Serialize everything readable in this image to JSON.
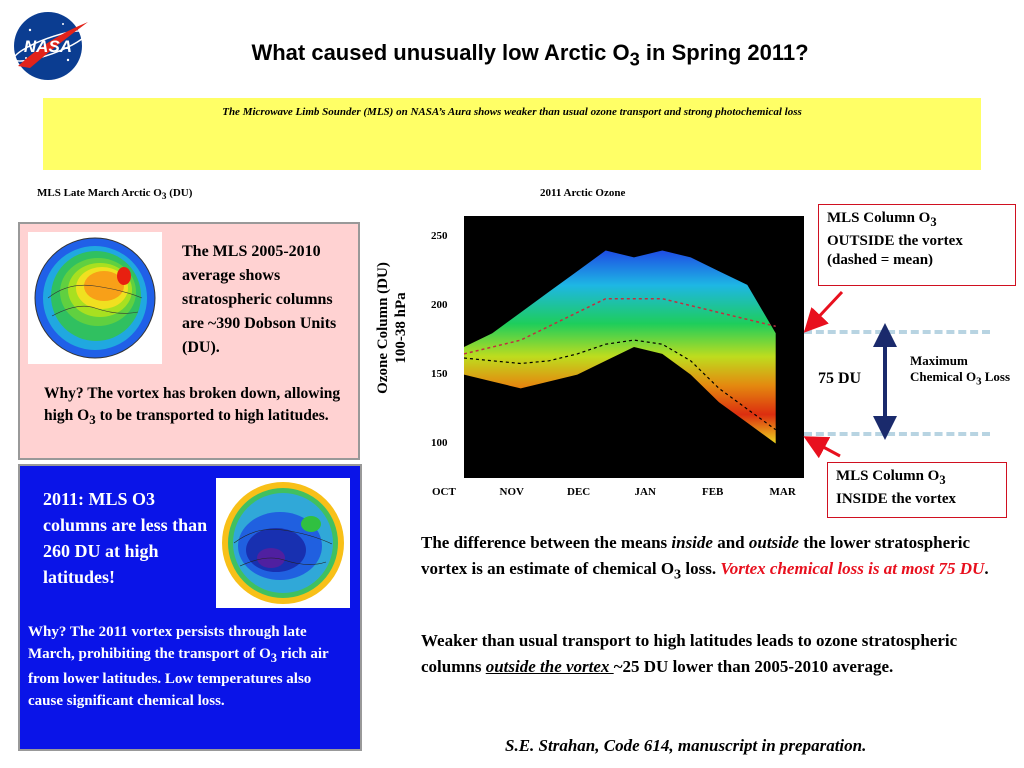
{
  "slide": {
    "logo_text": "NASA",
    "title_pre": "What caused unusually low Arctic O",
    "title_sub": "3",
    "title_post": " in Spring 2011?",
    "subtitle": "The Microwave Limb Sounder (MLS) on NASA’s Aura shows weaker than usual ozone transport and strong photochemical loss",
    "caption_left_pre": "MLS Late March Arctic O",
    "caption_left_sub": "3",
    "caption_left_post": " (DU)",
    "caption_right": "2011 Arctic Ozone"
  },
  "pink_panel": {
    "text1": "The MLS 2005-2010 average shows stratospheric columns are ~390 Dobson Units (DU).",
    "text2_pre": "Why? The vortex has broken down, allowing high O",
    "text2_sub": "3",
    "text2_post": " to be transported to high latitudes."
  },
  "blue_panel": {
    "text1": "2011: MLS O3 columns are less than 260 DU at high latitudes!",
    "text2_pre": "Why?  The 2011 vortex persists through late March, prohibiting the transport of O",
    "text2_sub": "3",
    "text2_post": " rich air from lower latitudes.  Low temperatures also cause significant chemical loss."
  },
  "annotations": {
    "outside_pre": "MLS Column O",
    "outside_sub": "3",
    "outside_post": "OUTSIDE the vortex (dashed = mean)",
    "inside_pre": "MLS Column O",
    "inside_sub": "3",
    "inside_post": "INSIDE the vortex",
    "du_label": "75 DU",
    "max_loss_pre": "Maximum Chemical O",
    "max_loss_sub": "3",
    "max_loss_post": " Loss"
  },
  "body_text": {
    "p1_a": "The difference between the means ",
    "p1_inside": "inside",
    "p1_b": " and ",
    "p1_outside": "outside",
    "p1_c": " the lower stratospheric vortex is an estimate of chemical O",
    "p1_sub": "3",
    "p1_d": " loss. ",
    "p1_red": "Vortex chemical loss is at most 75 DU",
    "p1_end": ".",
    "p2_a": "Weaker than usual transport to high latitudes leads to ozone stratospheric columns ",
    "p2_under": "outside the vortex ",
    "p2_b": "~25 DU lower than 2005-2010 average.",
    "credit": "S.E. Strahan, Code 614, manuscript in preparation."
  },
  "colors": {
    "yellow_box": "#ffff66",
    "pink_panel": "#ffd2d2",
    "blue_panel": "#0a14e8",
    "red_accent": "#e8101e",
    "arrow_navy": "#1a2a6c",
    "dash_lightblue": "#b8d4e2"
  },
  "chart_data": {
    "type": "area",
    "title": "2011 Arctic Ozone",
    "ylabel_line1": "Ozone Column (DU)",
    "ylabel_line2": "100-38 hPa",
    "xlabel": "",
    "x_ticks": [
      "OCT",
      "NOV",
      "DEC",
      "JAN",
      "FEB",
      "MAR"
    ],
    "y_ticks": [
      250,
      200,
      150,
      100
    ],
    "ylim": [
      75,
      265
    ],
    "series": [
      {
        "x_months": [
          0,
          0.5,
          1,
          1.5,
          2,
          2.5,
          3,
          3.5,
          4,
          4.5,
          5,
          5.5
        ],
        "upper": [
          170,
          180,
          195,
          210,
          225,
          240,
          235,
          240,
          235,
          225,
          215,
          180
        ],
        "lower": [
          150,
          145,
          140,
          145,
          150,
          160,
          170,
          165,
          150,
          130,
          115,
          100
        ]
      }
    ],
    "outside_mean": [
      165,
      170,
      175,
      185,
      195,
      205,
      205,
      205,
      200,
      195,
      190,
      185
    ],
    "inside_mean": [
      162,
      160,
      158,
      160,
      165,
      172,
      175,
      172,
      160,
      140,
      125,
      110
    ]
  }
}
